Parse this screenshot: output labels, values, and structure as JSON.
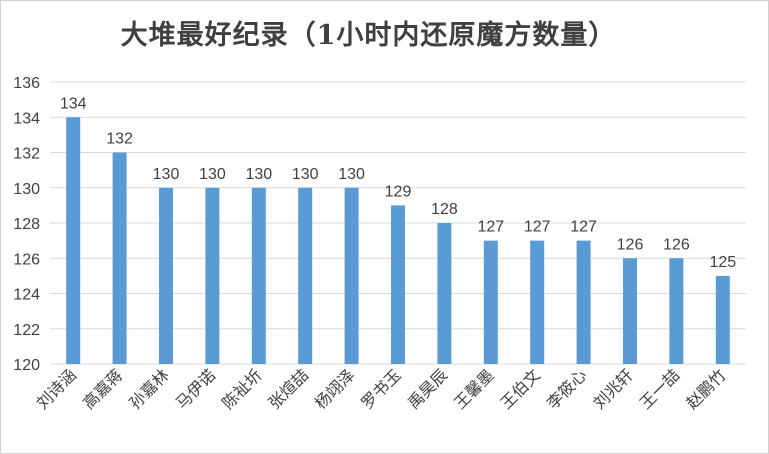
{
  "chart_data": {
    "type": "bar",
    "title": "大堆最好纪录（1小时内还原魔方数量）",
    "xlabel": "",
    "ylabel": "",
    "categories": [
      "刘诗涵",
      "高嘉蒋",
      "孙嘉林",
      "马伊诺",
      "陈祉圻",
      "张煊喆",
      "杨翊泽",
      "罗书玉",
      "禹昊辰",
      "王馨墨",
      "王伯文",
      "李筱心",
      "刘兆轩",
      "王一喆",
      "赵鹏竹"
    ],
    "values": [
      134,
      132,
      130,
      130,
      130,
      130,
      130,
      129,
      128,
      127,
      127,
      127,
      126,
      126,
      125
    ],
    "ylim": [
      120,
      136
    ],
    "yticks": [
      "120",
      "122",
      "124",
      "126",
      "128",
      "130",
      "132",
      "134",
      "136"
    ],
    "grid": true,
    "bar_color": "#5b9bd5",
    "grid_color": "#d9d9d9"
  }
}
